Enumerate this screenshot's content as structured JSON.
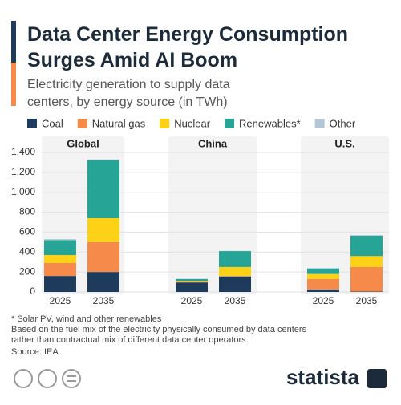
{
  "chart_data": {
    "type": "bar",
    "stacked": true,
    "title": "Data Center Energy Consumption Surges Amid AI Boom",
    "subtitle": "Electricity generation to supply data centers, by energy source (in TWh)",
    "groups": [
      "Global",
      "China",
      "U.S."
    ],
    "categories": [
      "2025",
      "2035",
      "2025",
      "2035",
      "2025",
      "2035"
    ],
    "series": [
      {
        "name": "Coal",
        "color": "#1f3b5c",
        "values": [
          160,
          200,
          95,
          155,
          25,
          5
        ]
      },
      {
        "name": "Natural gas",
        "color": "#f58a4b",
        "values": [
          130,
          300,
          5,
          5,
          105,
          245
        ]
      },
      {
        "name": "Nuclear",
        "color": "#fcd116",
        "values": [
          80,
          240,
          10,
          90,
          50,
          110
        ]
      },
      {
        "name": "Renewables*",
        "color": "#26a596",
        "values": [
          150,
          580,
          20,
          160,
          55,
          205
        ]
      },
      {
        "name": "Other",
        "color": "#b3c6d6",
        "values": [
          10,
          10,
          2,
          2,
          5,
          5
        ]
      }
    ],
    "ylim": [
      0,
      1400
    ],
    "yticks": [
      0,
      200,
      400,
      600,
      800,
      {
        "value": 1000,
        "label": "1,000"
      },
      {
        "value": 1200,
        "label": "1,200"
      },
      {
        "value": 1400,
        "label": "1,400"
      }
    ],
    "grid": true,
    "notes": [
      "* Solar PV, wind and other renewables",
      "Based on the fuel mix of the electricity physically consumed by data centers",
      "rather than contractual mix of different data center operators."
    ],
    "source": "Source: IEA",
    "brand": "statista"
  }
}
